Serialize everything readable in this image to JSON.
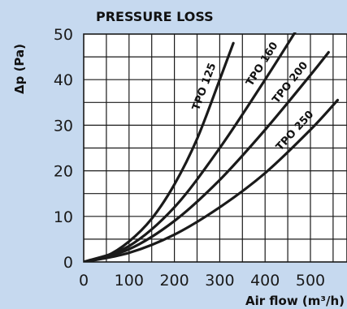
{
  "chart_data": {
    "type": "line",
    "title": "PRESSURE LOSS",
    "ylabel": "Δp (Pa)",
    "xlabel": "Air flow (m³/h)",
    "xlim": [
      0,
      550
    ],
    "ylim": [
      0,
      50
    ],
    "x_ticks": [
      0,
      100,
      200,
      300,
      400,
      500
    ],
    "y_ticks": [
      0,
      10,
      20,
      30,
      40,
      50
    ],
    "grid": true,
    "series": [
      {
        "name": "TPO 125",
        "x": [
          0,
          50,
          100,
          150,
          200,
          250,
          300,
          330
        ],
        "y": [
          0,
          1.3,
          4.5,
          9.5,
          17,
          27,
          40,
          48
        ]
      },
      {
        "name": "TPO 160",
        "x": [
          0,
          100,
          200,
          300,
          400,
          470
        ],
        "y": [
          0,
          3.5,
          12,
          25,
          40,
          51
        ]
      },
      {
        "name": "TPO 200",
        "x": [
          0,
          100,
          200,
          300,
          400,
          500,
          540
        ],
        "y": [
          0,
          2.8,
          9,
          18,
          29,
          41,
          46
        ]
      },
      {
        "name": "TPO 250",
        "x": [
          0,
          100,
          200,
          300,
          400,
          500,
          560
        ],
        "y": [
          0,
          2,
          6,
          12,
          19.5,
          29,
          35.5
        ]
      }
    ]
  }
}
